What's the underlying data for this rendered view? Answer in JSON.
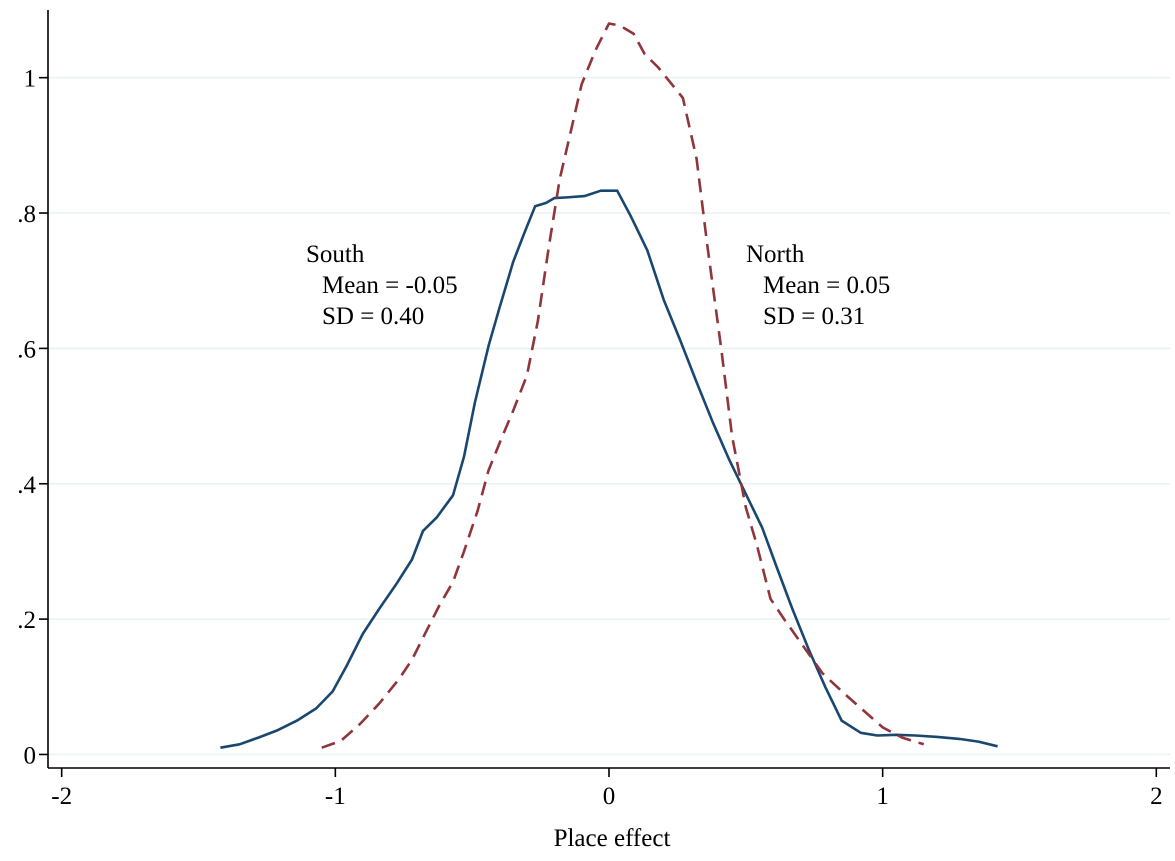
{
  "chart_data": {
    "type": "line",
    "title": "",
    "xlabel": "Place effect",
    "ylabel": "",
    "xlim": [
      -2.05,
      2.05
    ],
    "ylim": [
      -0.02,
      1.1
    ],
    "x_ticks": [
      -2,
      -1,
      0,
      1,
      2
    ],
    "x_tick_labels": [
      "-2",
      "-1",
      "0",
      "1",
      "2"
    ],
    "y_ticks": [
      0,
      0.2,
      0.4,
      0.6,
      0.8,
      1
    ],
    "y_tick_labels": [
      "0",
      ".2",
      ".4",
      ".6",
      ".8",
      "1"
    ],
    "grid": "horizontal",
    "colors": {
      "south": "#1a476f",
      "north": "#90353b",
      "grid": "#eaf2f3"
    },
    "series": [
      {
        "name": "South",
        "style": "solid",
        "x": [
          -1.42,
          -1.35,
          -1.28,
          -1.21,
          -1.14,
          -1.07,
          -1.01,
          -0.96,
          -0.9,
          -0.84,
          -0.78,
          -0.72,
          -0.68,
          -0.63,
          -0.57,
          -0.53,
          -0.49,
          -0.44,
          -0.4,
          -0.35,
          -0.31,
          -0.27,
          -0.23,
          -0.2,
          -0.16,
          -0.09,
          -0.03,
          0.03,
          0.08,
          0.14,
          0.2,
          0.26,
          0.32,
          0.38,
          0.44,
          0.5,
          0.56,
          0.61,
          0.67,
          0.73,
          0.79,
          0.85,
          0.92,
          0.98,
          1.05,
          1.12,
          1.2,
          1.28,
          1.35,
          1.42
        ],
        "y": [
          0.01,
          0.015,
          0.025,
          0.036,
          0.05,
          0.068,
          0.093,
          0.13,
          0.178,
          0.215,
          0.25,
          0.288,
          0.33,
          0.35,
          0.383,
          0.44,
          0.52,
          0.604,
          0.66,
          0.728,
          0.77,
          0.81,
          0.815,
          0.822,
          0.823,
          0.825,
          0.833,
          0.833,
          0.795,
          0.745,
          0.672,
          0.612,
          0.55,
          0.49,
          0.435,
          0.385,
          0.335,
          0.28,
          0.215,
          0.155,
          0.1,
          0.05,
          0.032,
          0.028,
          0.029,
          0.028,
          0.026,
          0.023,
          0.019,
          0.012
        ]
      },
      {
        "name": "North",
        "style": "dashed",
        "x": [
          -1.05,
          -0.98,
          -0.91,
          -0.84,
          -0.77,
          -0.72,
          -0.67,
          -0.62,
          -0.57,
          -0.53,
          -0.48,
          -0.44,
          -0.39,
          -0.35,
          -0.3,
          -0.26,
          -0.22,
          -0.18,
          -0.14,
          -0.1,
          -0.05,
          0.0,
          0.04,
          0.09,
          0.13,
          0.18,
          0.22,
          0.27,
          0.32,
          0.36,
          0.41,
          0.45,
          0.5,
          0.54,
          0.59,
          0.64,
          0.71,
          0.78,
          0.86,
          0.93,
          1.0,
          1.07,
          1.15
        ],
        "y": [
          0.01,
          0.02,
          0.045,
          0.075,
          0.11,
          0.14,
          0.18,
          0.22,
          0.255,
          0.3,
          0.36,
          0.42,
          0.47,
          0.508,
          0.56,
          0.64,
          0.75,
          0.85,
          0.92,
          0.99,
          1.04,
          1.08,
          1.077,
          1.065,
          1.035,
          1.015,
          0.995,
          0.97,
          0.88,
          0.75,
          0.6,
          0.47,
          0.365,
          0.31,
          0.23,
          0.2,
          0.16,
          0.12,
          0.09,
          0.065,
          0.04,
          0.025,
          0.015
        ]
      }
    ],
    "annotations": [
      {
        "series": "South",
        "lines": [
          "South",
          "Mean = -0.05",
          "SD = 0.40"
        ]
      },
      {
        "series": "North",
        "lines": [
          "North",
          "Mean = 0.05",
          "SD = 0.31"
        ]
      }
    ]
  }
}
